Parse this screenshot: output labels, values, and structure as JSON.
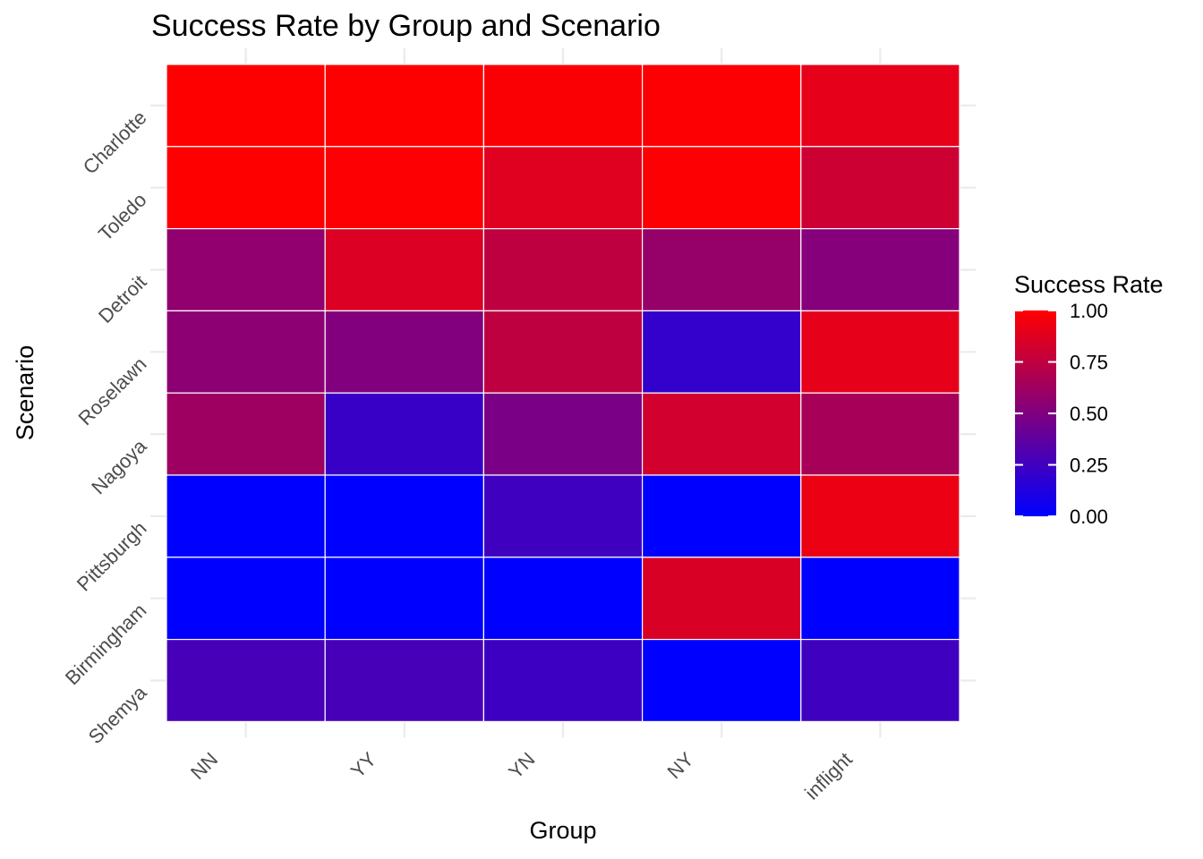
{
  "chart_data": {
    "type": "heatmap",
    "title": "Success Rate by Group and Scenario",
    "xlabel": "Group",
    "ylabel": "Scenario",
    "x_categories": [
      "NN",
      "YY",
      "YN",
      "NY",
      "inflight"
    ],
    "y_categories": [
      "Charlotte",
      "Toledo",
      "Detroit",
      "Roselawn",
      "Nagoya",
      "Pittsburgh",
      "Birmingham",
      "Shemya"
    ],
    "values": [
      [
        1.0,
        1.0,
        0.98,
        0.99,
        0.9
      ],
      [
        1.0,
        0.99,
        0.88,
        0.99,
        0.8
      ],
      [
        0.57,
        0.86,
        0.75,
        0.59,
        0.52
      ],
      [
        0.55,
        0.51,
        0.75,
        0.2,
        0.9
      ],
      [
        0.62,
        0.22,
        0.48,
        0.82,
        0.65
      ],
      [
        0.0,
        0.0,
        0.25,
        0.0,
        0.92
      ],
      [
        0.0,
        0.0,
        0.0,
        0.85,
        0.0
      ],
      [
        0.28,
        0.28,
        0.24,
        0.0,
        0.25
      ]
    ],
    "colorscale": {
      "low": "#0000FF",
      "high": "#FF0000",
      "min": 0,
      "max": 1
    },
    "legend": {
      "title": "Success Rate",
      "ticks": [
        "1.00",
        "0.75",
        "0.50",
        "0.25",
        "0.00"
      ],
      "tick_values": [
        1.0,
        0.75,
        0.5,
        0.25,
        0.0
      ],
      "position": "right"
    },
    "grid": true
  }
}
